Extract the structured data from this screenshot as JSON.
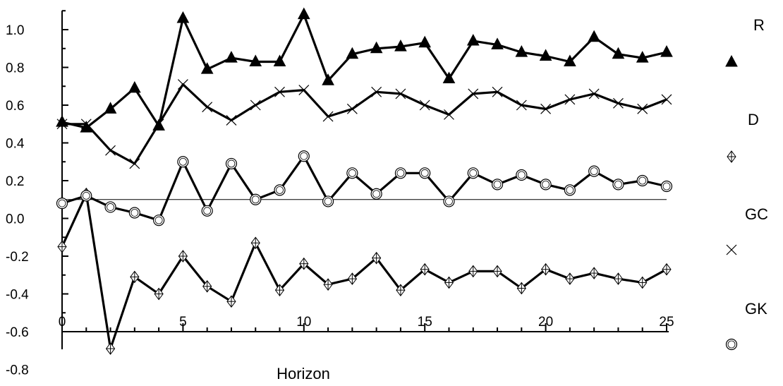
{
  "chart_data": {
    "type": "line",
    "xlabel": "Horizon",
    "ylabel": "",
    "xlim": [
      0,
      25
    ],
    "ylim": [
      -0.8,
      1.1
    ],
    "xticks": [
      0,
      5,
      10,
      15,
      20,
      25
    ],
    "xtick_labels": [
      "0",
      "5",
      "10",
      "15",
      "20",
      "25"
    ],
    "yticks": [
      1.0,
      0.8,
      0.6,
      0.4,
      0.2,
      0.0,
      -0.2,
      -0.4,
      -0.6,
      -0.8
    ],
    "ytick_labels": [
      "1.0",
      "0.8",
      "0.6",
      "0.4",
      "0.2",
      "0.0",
      "-0.2",
      "-0.4",
      "-0.6",
      "-0.8"
    ],
    "reference_line": 0.1,
    "grid": false,
    "legend_position": "right",
    "x": [
      0,
      1,
      2,
      3,
      4,
      5,
      6,
      7,
      8,
      9,
      10,
      11,
      12,
      13,
      14,
      15,
      16,
      17,
      18,
      19,
      20,
      21,
      22,
      23,
      24,
      25
    ],
    "series": [
      {
        "name": "R",
        "marker": "filled-triangle",
        "values": [
          0.51,
          0.48,
          0.58,
          0.69,
          0.49,
          1.06,
          0.79,
          0.85,
          0.83,
          0.83,
          1.08,
          0.73,
          0.87,
          0.9,
          0.91,
          0.93,
          0.74,
          0.94,
          0.92,
          0.88,
          0.86,
          0.83,
          0.96,
          0.87,
          0.85,
          0.88
        ]
      },
      {
        "name": "D",
        "marker": "circle-plus",
        "values": [
          -0.15,
          0.13,
          -0.69,
          -0.31,
          -0.4,
          -0.2,
          -0.36,
          -0.44,
          -0.13,
          -0.38,
          -0.24,
          -0.35,
          -0.32,
          -0.21,
          -0.38,
          -0.27,
          -0.34,
          -0.28,
          -0.28,
          -0.37,
          -0.27,
          -0.32,
          -0.29,
          -0.32,
          -0.34,
          -0.27
        ]
      },
      {
        "name": "GC",
        "marker": "x",
        "values": [
          0.5,
          0.5,
          0.36,
          0.29,
          0.5,
          0.71,
          0.59,
          0.52,
          0.6,
          0.67,
          0.68,
          0.54,
          0.58,
          0.67,
          0.66,
          0.6,
          0.55,
          0.66,
          0.67,
          0.6,
          0.58,
          0.63,
          0.66,
          0.61,
          0.58,
          0.63
        ]
      },
      {
        "name": "GK",
        "marker": "open-circle",
        "values": [
          0.08,
          0.12,
          0.06,
          0.03,
          -0.01,
          0.3,
          0.04,
          0.29,
          0.1,
          0.15,
          0.33,
          0.09,
          0.24,
          0.13,
          0.24,
          0.24,
          0.09,
          0.24,
          0.18,
          0.23,
          0.18,
          0.15,
          0.25,
          0.18,
          0.2,
          0.17
        ]
      }
    ]
  }
}
